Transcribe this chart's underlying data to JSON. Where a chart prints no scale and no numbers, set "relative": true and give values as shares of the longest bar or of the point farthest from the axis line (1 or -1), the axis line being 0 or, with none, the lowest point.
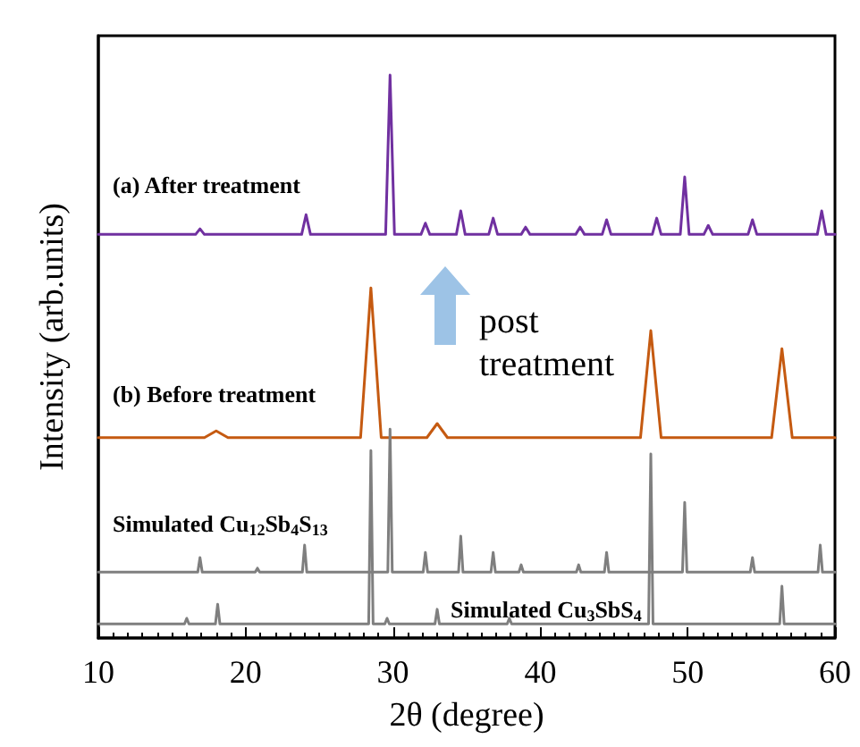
{
  "chart_data": {
    "type": "line",
    "relative": true,
    "xlabel": "2θ (degree)",
    "ylabel": "Intensity (arb.units)",
    "xlim": [
      10,
      60
    ],
    "xticks": [
      10,
      20,
      30,
      40,
      50,
      60
    ],
    "grid": false,
    "legend": false,
    "marker": "none",
    "line_style": "solid",
    "annotations": [
      "post treatment"
    ],
    "series": [
      {
        "name": "(a) After treatment",
        "color": "#7030a0",
        "x": [
          10,
          16.6,
          16.9,
          17.2,
          23.8,
          24.1,
          24.4,
          29.5,
          29.8,
          30.1,
          31.9,
          32.2,
          32.5,
          34.3,
          34.6,
          34.9,
          36.5,
          36.8,
          37.1,
          38.7,
          39.0,
          39.3,
          42.4,
          42.7,
          43.0,
          44.2,
          44.5,
          44.8,
          47.6,
          47.9,
          48.2,
          49.5,
          49.8,
          50.1,
          51.1,
          51.4,
          51.7,
          54.1,
          54.4,
          54.7,
          58.8,
          59.1,
          59.4,
          60
        ],
        "values": [
          0.717,
          0.717,
          0.727,
          0.717,
          0.717,
          0.752,
          0.717,
          0.717,
          1,
          0.717,
          0.717,
          0.737,
          0.717,
          0.717,
          0.759,
          0.717,
          0.717,
          0.746,
          0.717,
          0.717,
          0.73,
          0.717,
          0.717,
          0.73,
          0.717,
          0.717,
          0.743,
          0.717,
          0.717,
          0.746,
          0.717,
          0.717,
          0.819,
          0.717,
          0.717,
          0.733,
          0.717,
          0.717,
          0.743,
          0.717,
          0.717,
          0.759,
          0.717,
          0.717
        ]
      },
      {
        "name": "(b) Before treatment",
        "color": "#c55a11",
        "x": [
          10,
          17.2,
          18,
          18.8,
          27.8,
          28.5,
          29.2,
          32.3,
          33,
          33.7,
          46.8,
          47.5,
          48.2,
          55.7,
          56.4,
          57.1,
          60
        ],
        "values": [
          0.356,
          0.356,
          0.368,
          0.356,
          0.356,
          0.622,
          0.356,
          0.356,
          0.381,
          0.356,
          0.356,
          0.546,
          0.356,
          0.356,
          0.514,
          0.356,
          0.356
        ]
      },
      {
        "name": "Simulated Cu$_{12}$Sb$_{4}$S$_{13}$",
        "color": "#7f7f7f",
        "x": [
          10,
          16.75,
          16.9,
          17.05,
          20.65,
          20.8,
          20.95,
          23.85,
          24.0,
          24.15,
          29.65,
          29.8,
          29.95,
          32.05,
          32.2,
          32.35,
          34.45,
          34.6,
          34.75,
          36.65,
          36.8,
          36.95,
          38.55,
          38.7,
          38.85,
          42.45,
          42.6,
          42.75,
          44.35,
          44.5,
          44.65,
          49.65,
          49.8,
          49.95,
          54.25,
          54.4,
          54.55,
          58.85,
          59.0,
          59.15,
          60
        ],
        "values": [
          0.117,
          0.117,
          0.143,
          0.117,
          0.117,
          0.124,
          0.117,
          0.117,
          0.165,
          0.117,
          0.117,
          0.371,
          0.117,
          0.117,
          0.152,
          0.117,
          0.117,
          0.181,
          0.117,
          0.117,
          0.152,
          0.117,
          0.117,
          0.13,
          0.117,
          0.117,
          0.13,
          0.117,
          0.117,
          0.152,
          0.117,
          0.117,
          0.241,
          0.117,
          0.117,
          0.143,
          0.117,
          0.117,
          0.165,
          0.117,
          0.117
        ]
      },
      {
        "name": "Simulated Cu$_{3}$SbS$_{4}$",
        "color": "#7f7f7f",
        "x": [
          10,
          15.85,
          16.0,
          16.15,
          17.95,
          18.1,
          18.25,
          28.35,
          28.5,
          28.65,
          29.45,
          29.6,
          29.75,
          32.85,
          33.0,
          33.15,
          37.75,
          37.9,
          38.05,
          47.35,
          47.5,
          47.65,
          56.25,
          56.4,
          56.55,
          60
        ],
        "values": [
          0.025,
          0.025,
          0.035,
          0.025,
          0.025,
          0.06,
          0.025,
          0.025,
          0.333,
          0.025,
          0.025,
          0.035,
          0.025,
          0.025,
          0.051,
          0.025,
          0.025,
          0.035,
          0.025,
          0.025,
          0.327,
          0.025,
          0.025,
          0.092,
          0.025,
          0.025
        ]
      }
    ]
  }
}
